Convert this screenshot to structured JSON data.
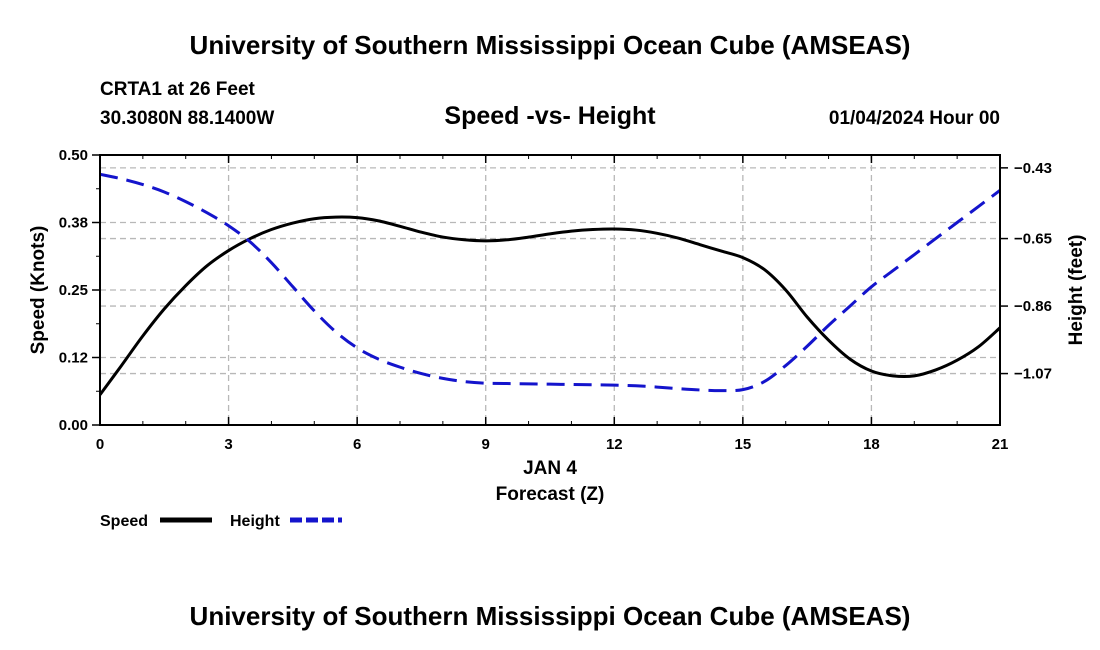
{
  "header": {
    "title": "University of Southern Mississippi Ocean Cube (AMSEAS)",
    "station": "CRTA1 at 26 Feet",
    "coords": "30.3080N  88.1400W",
    "subtitle": "Speed -vs- Height",
    "datetime": "01/04/2024 Hour 00"
  },
  "footer": {
    "title": "University of Southern Mississippi Ocean Cube (AMSEAS)"
  },
  "chart_data": {
    "type": "line",
    "title": "Speed -vs- Height",
    "xlabel": "Forecast (Z)",
    "xlabel_date": "JAN 4",
    "ylabel": "Speed (Knots)",
    "y2label": "Height (feet)",
    "xlim": [
      0,
      21
    ],
    "ylim": [
      0,
      0.5
    ],
    "y2lim": [
      -1.23,
      -0.39
    ],
    "x_ticks": [
      0,
      3,
      6,
      9,
      12,
      15,
      18,
      21
    ],
    "x_tick_labels": [
      "0",
      "3",
      "6",
      "9",
      "12",
      "15",
      "18",
      "21"
    ],
    "y_ticks": [
      0.0,
      0.125,
      0.25,
      0.375,
      0.5
    ],
    "y_tick_labels": [
      "0.00",
      "0.12",
      "0.25",
      "0.38",
      "0.50"
    ],
    "y2_ticks": [
      -1.07,
      -0.86,
      -0.65,
      -0.43
    ],
    "y2_tick_labels": [
      "−1.07",
      "−0.86",
      "−0.65",
      "−0.43"
    ],
    "grid": true,
    "legend_position": "bottom-left",
    "series": [
      {
        "name": "Speed",
        "axis": "left",
        "color": "#000000",
        "dash": "solid",
        "x": [
          0,
          0.5,
          1,
          1.5,
          2,
          2.5,
          3,
          3.5,
          4,
          4.5,
          5,
          5.5,
          6,
          6.5,
          7,
          7.5,
          8,
          8.5,
          9,
          9.5,
          10,
          10.5,
          11,
          11.5,
          12,
          12.5,
          13,
          13.5,
          14,
          14.5,
          15,
          15.5,
          16,
          16.5,
          17,
          17.5,
          18,
          18.5,
          19,
          19.5,
          20,
          20.5,
          21
        ],
        "values": [
          0.056,
          0.11,
          0.165,
          0.215,
          0.258,
          0.295,
          0.323,
          0.345,
          0.362,
          0.374,
          0.382,
          0.385,
          0.384,
          0.378,
          0.368,
          0.357,
          0.348,
          0.343,
          0.341,
          0.343,
          0.348,
          0.354,
          0.359,
          0.362,
          0.363,
          0.361,
          0.355,
          0.346,
          0.334,
          0.322,
          0.31,
          0.288,
          0.25,
          0.2,
          0.157,
          0.122,
          0.1,
          0.091,
          0.091,
          0.102,
          0.12,
          0.145,
          0.18
        ]
      },
      {
        "name": "Height",
        "axis": "right",
        "color": "#1414cc",
        "dash": "dashed",
        "x": [
          0,
          0.5,
          1,
          1.5,
          2,
          2.5,
          3,
          3.5,
          4,
          4.5,
          5,
          5.5,
          6,
          6.5,
          7,
          7.5,
          8,
          8.5,
          9,
          9.5,
          10,
          10.5,
          11,
          11.5,
          12,
          12.5,
          13,
          13.5,
          14,
          14.5,
          15,
          15.5,
          16,
          16.5,
          17,
          17.5,
          18,
          18.5,
          19,
          19.5,
          20,
          20.5,
          21
        ],
        "values": [
          -0.45,
          -0.464,
          -0.482,
          -0.505,
          -0.535,
          -0.57,
          -0.61,
          -0.66,
          -0.725,
          -0.8,
          -0.875,
          -0.94,
          -0.99,
          -1.025,
          -1.05,
          -1.07,
          -1.085,
          -1.095,
          -1.1,
          -1.101,
          -1.102,
          -1.103,
          -1.104,
          -1.105,
          -1.106,
          -1.108,
          -1.112,
          -1.117,
          -1.121,
          -1.123,
          -1.12,
          -1.095,
          -1.045,
          -0.985,
          -0.92,
          -0.86,
          -0.8,
          -0.75,
          -0.7,
          -0.65,
          -0.6,
          -0.55,
          -0.5
        ]
      }
    ]
  }
}
